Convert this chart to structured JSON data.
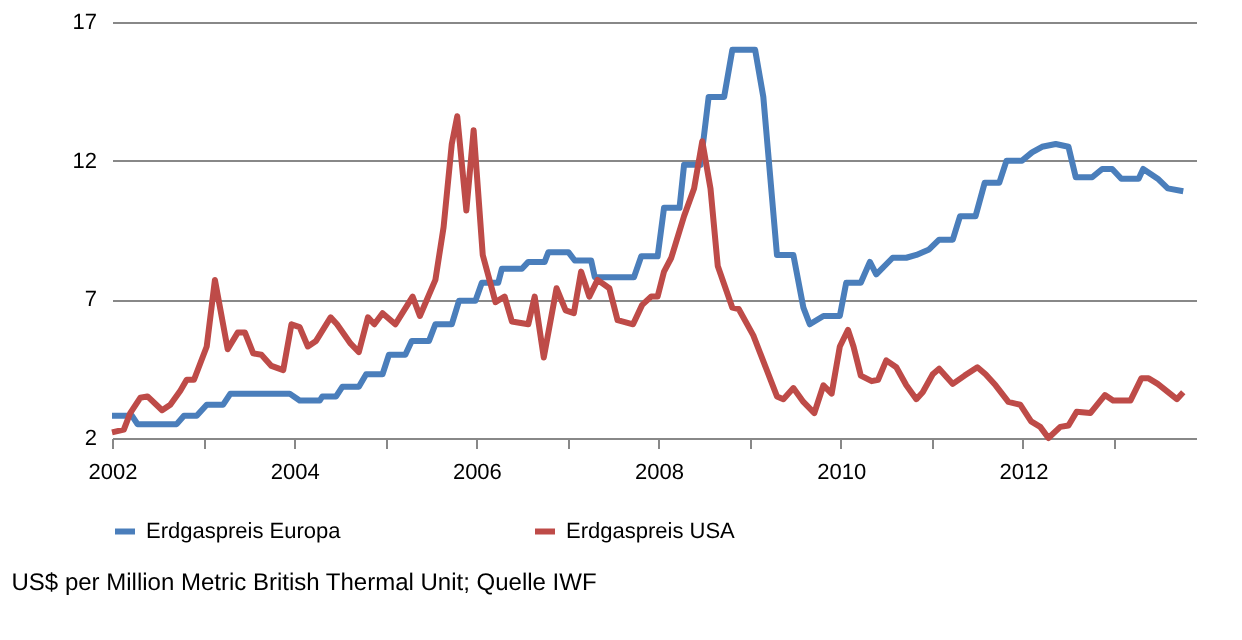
{
  "chart_data": {
    "type": "line",
    "xlim": [
      2002,
      2013.9
    ],
    "ylim": [
      2,
      17
    ],
    "yticks": [
      2,
      7,
      12,
      17
    ],
    "xticks": [
      2002,
      {
        "value": 2003,
        "label": null
      },
      2004,
      {
        "value": 2005,
        "label": null
      },
      2006,
      {
        "value": 2007,
        "label": null
      },
      2008,
      {
        "value": 2009,
        "label": null
      },
      2010,
      {
        "value": 2011,
        "label": null
      },
      2012,
      {
        "value": 2013,
        "label": null
      }
    ],
    "grid": "y",
    "legend": "bottom",
    "marker": "none",
    "line_style": "solid",
    "annotations": [
      "US$ per Million Metric British Thermal Unit; Quelle IWF"
    ],
    "series": [
      {
        "name": "Erdgaspreis Europa",
        "color": "#4a7ebb",
        "x": [
          2002.0,
          2002.22,
          2002.28,
          2002.71,
          2002.79,
          2002.93,
          2003.04,
          2003.22,
          2003.3,
          2003.95,
          2004.06,
          2004.28,
          2004.31,
          2004.46,
          2004.53,
          2004.71,
          2004.79,
          2004.97,
          2005.04,
          2005.22,
          2005.29,
          2005.48,
          2005.55,
          2005.73,
          2005.81,
          2005.99,
          2006.06,
          2006.24,
          2006.28,
          2006.5,
          2006.57,
          2006.75,
          2006.79,
          2007.01,
          2007.08,
          2007.26,
          2007.3,
          2007.73,
          2007.81,
          2007.99,
          2008.06,
          2008.23,
          2008.28,
          2008.46,
          2008.55,
          2008.72,
          2008.81,
          2009.06,
          2009.15,
          2009.3,
          2009.48,
          2009.59,
          2009.66,
          2009.81,
          2009.99,
          2010.06,
          2010.22,
          2010.32,
          2010.39,
          2010.57,
          2010.72,
          2010.83,
          2010.97,
          2011.08,
          2011.23,
          2011.31,
          2011.48,
          2011.58,
          2011.74,
          2011.82,
          2011.99,
          2012.1,
          2012.21,
          2012.36,
          2012.5,
          2012.58,
          2012.76,
          2012.87,
          2012.98,
          2013.08,
          2013.27,
          2013.32,
          2013.48,
          2013.59,
          2013.76
        ],
        "values": [
          2.8,
          2.8,
          2.5,
          2.5,
          2.8,
          2.8,
          3.2,
          3.2,
          3.6,
          3.6,
          3.35,
          3.35,
          3.5,
          3.5,
          3.85,
          3.85,
          4.3,
          4.3,
          5.0,
          5.0,
          5.5,
          5.5,
          6.1,
          6.1,
          6.95,
          6.95,
          7.6,
          7.6,
          8.1,
          8.1,
          8.35,
          8.35,
          8.7,
          8.7,
          8.4,
          8.4,
          7.8,
          7.8,
          8.55,
          8.55,
          10.3,
          10.3,
          11.85,
          11.85,
          14.3,
          14.3,
          16.0,
          16.0,
          14.3,
          8.6,
          8.6,
          6.7,
          6.1,
          6.4,
          6.4,
          7.6,
          7.6,
          8.35,
          7.9,
          8.5,
          8.5,
          8.6,
          8.8,
          9.15,
          9.15,
          10.0,
          10.0,
          11.2,
          11.2,
          12.0,
          12.0,
          12.3,
          12.5,
          12.6,
          12.5,
          11.4,
          11.4,
          11.7,
          11.7,
          11.35,
          11.35,
          11.7,
          11.35,
          11.0,
          10.9
        ]
      },
      {
        "name": "Erdgaspreis USA",
        "color": "#be4b48",
        "x": [
          2002.0,
          2002.13,
          2002.2,
          2002.31,
          2002.39,
          2002.55,
          2002.64,
          2002.75,
          2002.82,
          2002.9,
          2003.04,
          2003.13,
          2003.27,
          2003.38,
          2003.46,
          2003.55,
          2003.64,
          2003.75,
          2003.88,
          2003.97,
          2004.06,
          2004.15,
          2004.24,
          2004.4,
          2004.47,
          2004.62,
          2004.71,
          2004.81,
          2004.88,
          2004.97,
          2005.11,
          2005.3,
          2005.38,
          2005.55,
          2005.64,
          2005.73,
          2005.79,
          2005.89,
          2005.97,
          2006.07,
          2006.21,
          2006.31,
          2006.39,
          2006.57,
          2006.64,
          2006.74,
          2006.88,
          2006.98,
          2007.07,
          2007.15,
          2007.24,
          2007.33,
          2007.46,
          2007.55,
          2007.72,
          2007.82,
          2007.92,
          2007.99,
          2008.06,
          2008.14,
          2008.28,
          2008.39,
          2008.48,
          2008.57,
          2008.65,
          2008.81,
          2008.88,
          2009.04,
          2009.3,
          2009.37,
          2009.48,
          2009.59,
          2009.71,
          2009.81,
          2009.9,
          2009.99,
          2010.08,
          2010.14,
          2010.22,
          2010.34,
          2010.41,
          2010.5,
          2010.61,
          2010.72,
          2010.83,
          2010.9,
          2011.01,
          2011.08,
          2011.23,
          2011.36,
          2011.5,
          2011.59,
          2011.7,
          2011.84,
          2011.97,
          2012.09,
          2012.19,
          2012.28,
          2012.41,
          2012.5,
          2012.59,
          2012.74,
          2012.9,
          2012.99,
          2013.18,
          2013.3,
          2013.38,
          2013.48,
          2013.69,
          2013.76
        ],
        "values": [
          2.2,
          2.3,
          2.9,
          3.45,
          3.5,
          3.0,
          3.2,
          3.7,
          4.1,
          4.1,
          5.3,
          7.7,
          5.2,
          5.8,
          5.8,
          5.05,
          5.0,
          4.6,
          4.45,
          6.1,
          6.0,
          5.3,
          5.5,
          6.35,
          6.1,
          5.4,
          5.1,
          6.35,
          6.1,
          6.5,
          6.1,
          7.1,
          6.4,
          7.7,
          9.6,
          12.6,
          13.6,
          10.2,
          13.1,
          8.6,
          6.9,
          7.1,
          6.2,
          6.1,
          7.1,
          4.9,
          7.4,
          6.6,
          6.5,
          8.0,
          7.1,
          7.7,
          7.4,
          6.25,
          6.1,
          6.8,
          7.1,
          7.1,
          8.0,
          8.5,
          10.0,
          11.0,
          12.7,
          11.0,
          8.2,
          6.7,
          6.65,
          5.7,
          3.5,
          3.4,
          3.8,
          3.3,
          2.9,
          3.9,
          3.6,
          5.3,
          5.9,
          5.3,
          4.25,
          4.05,
          4.1,
          4.8,
          4.55,
          3.9,
          3.4,
          3.65,
          4.3,
          4.5,
          3.95,
          4.25,
          4.55,
          4.3,
          3.9,
          3.3,
          3.2,
          2.6,
          2.4,
          2.0,
          2.4,
          2.45,
          2.95,
          2.9,
          3.55,
          3.35,
          3.35,
          4.15,
          4.15,
          3.95,
          3.4,
          3.65
        ]
      }
    ]
  }
}
